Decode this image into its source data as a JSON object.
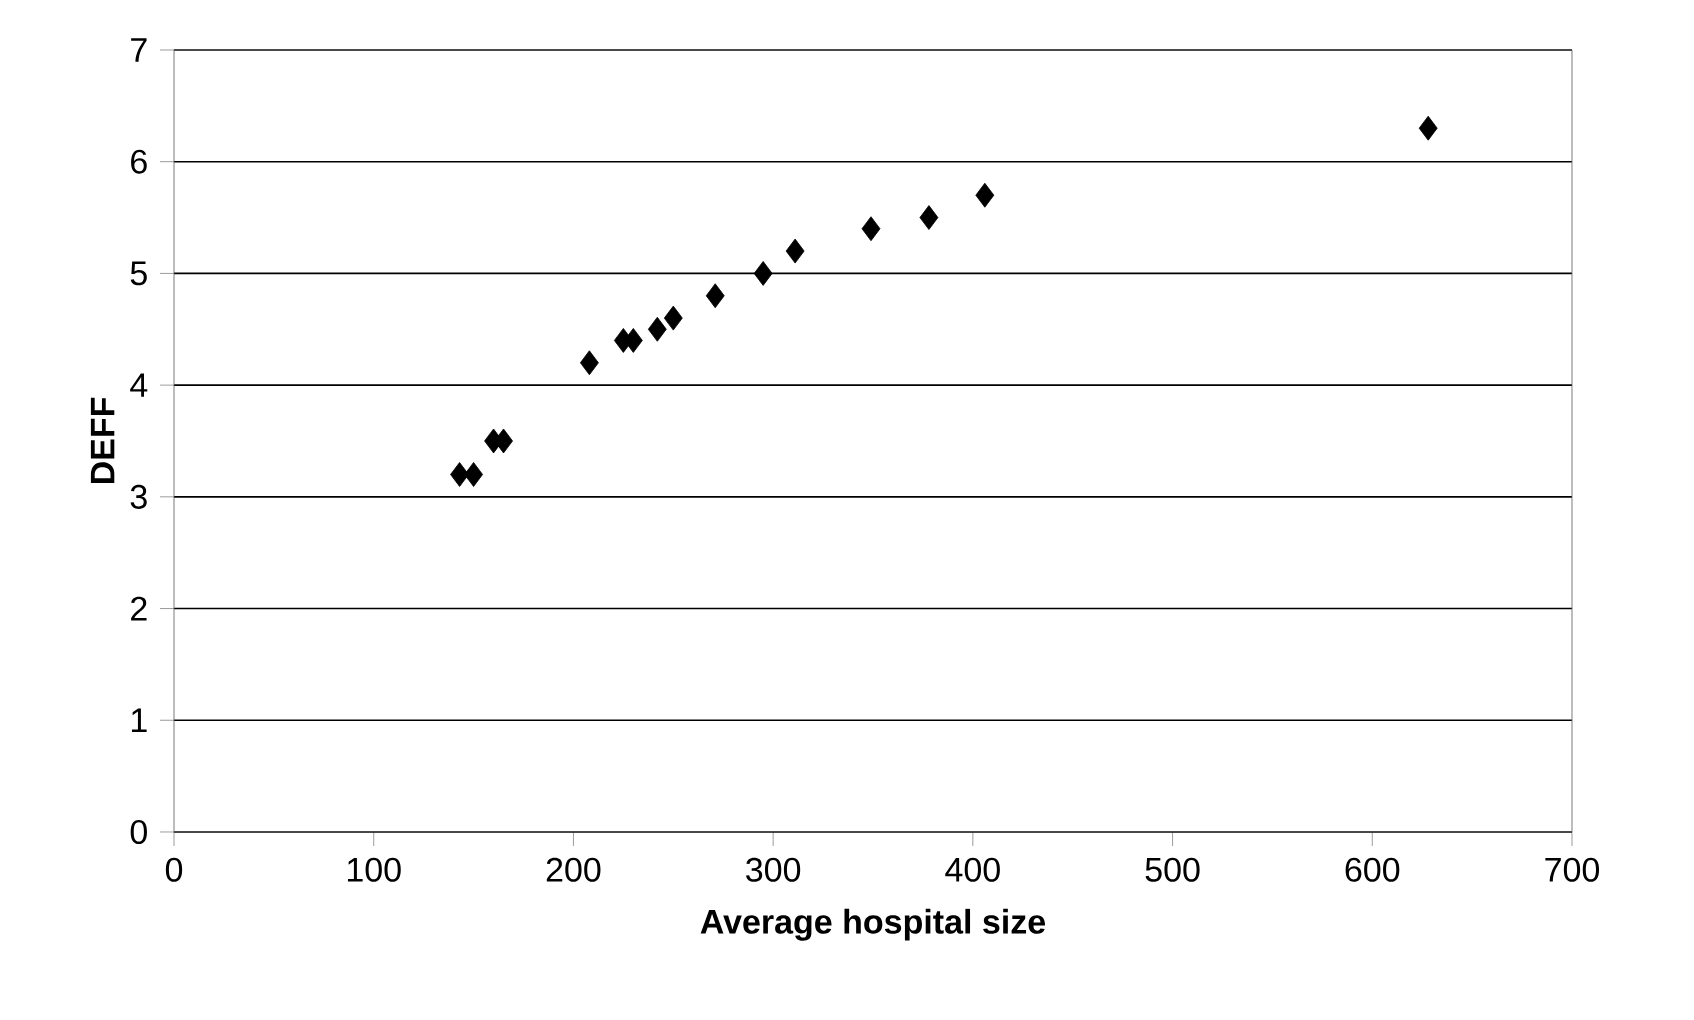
{
  "chart_data": {
    "type": "scatter",
    "xlabel": "Average hospital size",
    "ylabel": "DEFF",
    "x": [
      143,
      150,
      160,
      165,
      208,
      225,
      230,
      242,
      250,
      271,
      295,
      311,
      349,
      378,
      406,
      628
    ],
    "values": [
      3.2,
      3.2,
      3.5,
      3.5,
      4.2,
      4.4,
      4.4,
      4.5,
      4.6,
      4.8,
      5.0,
      5.2,
      5.4,
      5.5,
      5.7,
      6.3
    ],
    "color": "#000000",
    "marker": "diamond",
    "xlim": [
      0,
      700
    ],
    "xticks": [
      0,
      100,
      200,
      300,
      400,
      500,
      600,
      700
    ],
    "ylim": [
      0,
      7
    ],
    "yticks": [
      0,
      1,
      2,
      3,
      4,
      5,
      6,
      7
    ],
    "grid": "y"
  }
}
